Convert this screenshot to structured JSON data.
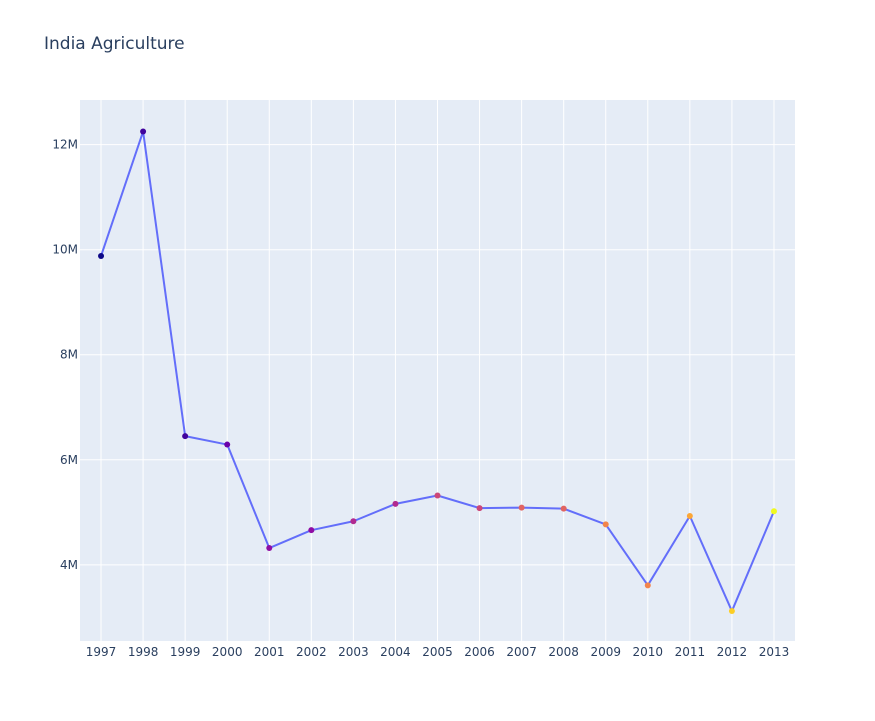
{
  "chart_data": {
    "type": "line",
    "title": "India Agriculture",
    "xlabel": "",
    "ylabel": "",
    "x": [
      "1997",
      "1998",
      "1999",
      "2000",
      "2001",
      "2002",
      "2003",
      "2004",
      "2005",
      "2006",
      "2007",
      "2008",
      "2009",
      "2010",
      "2011",
      "2012",
      "2013"
    ],
    "series": [
      {
        "values": [
          9880000,
          12250000,
          6450000,
          6290000,
          4320000,
          4660000,
          4830000,
          5160000,
          5320000,
          5080000,
          5090000,
          5070000,
          4770000,
          3610000,
          4930000,
          3120000,
          5020000
        ],
        "line_color": "#636efa",
        "marker_colors": [
          "#0d0887",
          "#41049d",
          "#41049d",
          "#6a00a8",
          "#8f0da4",
          "#8f0da4",
          "#b12a90",
          "#b12a90",
          "#cc4778",
          "#cc4778",
          "#e16462",
          "#e16462",
          "#f2844b",
          "#f2844b",
          "#fca636",
          "#fcce25",
          "#f0f921"
        ]
      }
    ],
    "ylim": [
      2550000,
      12850000
    ],
    "y_ticks": [
      4000000,
      6000000,
      8000000,
      10000000,
      12000000
    ],
    "y_tick_labels": [
      "4M",
      "6M",
      "8M",
      "10M",
      "12M"
    ],
    "grid": true,
    "legend": "none",
    "background_color": "#e5ecf6",
    "gridline_color": "#ffffff"
  }
}
